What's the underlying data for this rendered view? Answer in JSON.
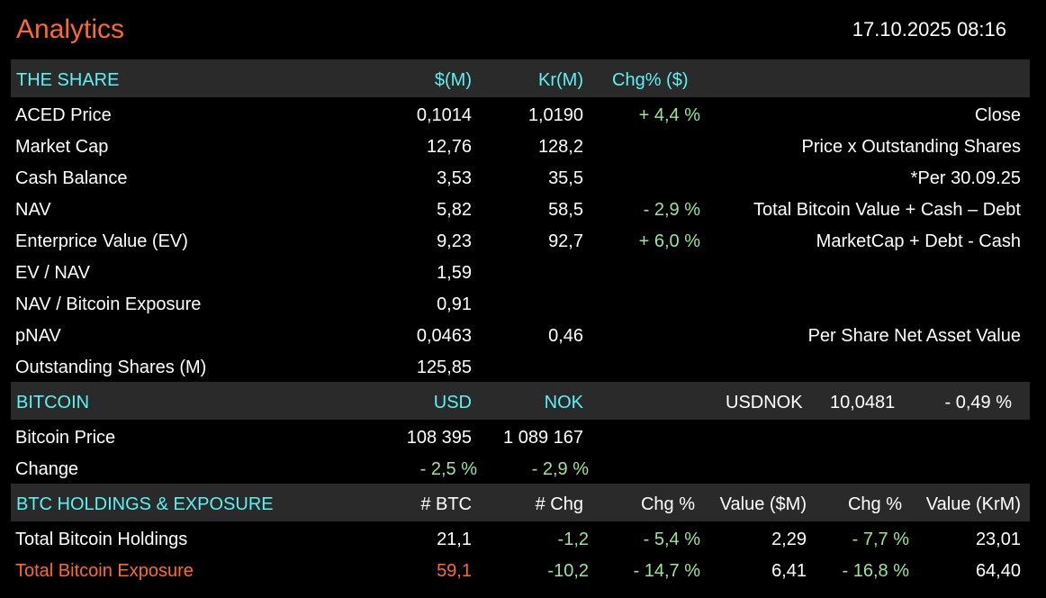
{
  "title": "Analytics",
  "datetime": "17.10.2025 08:16",
  "share": {
    "header": {
      "label": "THE SHARE",
      "usd": "$(M)",
      "nok": "Kr(M)",
      "chg": "Chg% ($)"
    },
    "rows": [
      {
        "label": "ACED Price",
        "usd": "0,1014",
        "nok": "1,0190",
        "chg": "+ 4,4 %",
        "note": "Close"
      },
      {
        "label": "Market Cap",
        "usd": "12,76",
        "nok": "128,2",
        "chg": "",
        "note": "Price x Outstanding Shares"
      },
      {
        "label": "Cash Balance",
        "usd": "3,53",
        "nok": "35,5",
        "chg": "",
        "note": "*Per 30.09.25"
      },
      {
        "label": "NAV",
        "usd": "5,82",
        "nok": "58,5",
        "chg": "- 2,9 %",
        "note": "Total Bitcoin Value + Cash – Debt"
      },
      {
        "label": "Enterprice Value (EV)",
        "usd": "9,23",
        "nok": "92,7",
        "chg": "+ 6,0 %",
        "note": "MarketCap + Debt - Cash"
      },
      {
        "label": "EV / NAV",
        "usd": "1,59",
        "nok": "",
        "chg": "",
        "note": ""
      },
      {
        "label": "NAV / Bitcoin Exposure",
        "usd": "0,91",
        "nok": "",
        "chg": "",
        "note": ""
      },
      {
        "label": "pNAV",
        "usd": "0,0463",
        "nok": "0,46",
        "chg": "",
        "note": "Per Share Net Asset Value"
      },
      {
        "label": "Outstanding Shares (M)",
        "usd": "125,85",
        "nok": "",
        "chg": "",
        "note": ""
      }
    ]
  },
  "bitcoin": {
    "header": {
      "label": "BITCOIN",
      "usd": "USD",
      "nok": "NOK",
      "fx_label": "USDNOK",
      "fx_rate": "10,0481",
      "fx_chg": "- 0,49 %"
    },
    "price": {
      "label": "Bitcoin Price",
      "usd": "108 395",
      "nok": "1 089 167"
    },
    "change": {
      "label": "Change",
      "usd": "- 2,5 %",
      "nok": "- 2,9 %"
    }
  },
  "holdings": {
    "header": {
      "label": "BTC HOLDINGS & EXPOSURE",
      "btc": "# BTC",
      "chg": "# Chg",
      "chg_pct": "Chg %",
      "value_usd": "Value ($M)",
      "chg_pct2": "Chg %",
      "value_nok": "Value (KrM)"
    },
    "rows": [
      {
        "label": "Total Bitcoin Holdings",
        "btc": "21,1",
        "chg": "-1,2",
        "chg_pct": "- 5,4 %",
        "value_usd": "2,29",
        "chg_pct2": "- 7,7 %",
        "value_nok": "23,01"
      },
      {
        "label": "Total Bitcoin Exposure",
        "btc": "59,1",
        "chg": "-10,2",
        "chg_pct": "- 14,7 %",
        "value_usd": "6,41",
        "chg_pct2": "- 16,8 %",
        "value_nok": "64,40"
      }
    ]
  },
  "colors": {
    "accent": "#ff6a2b",
    "header_text": "#5cf2f2",
    "positive_negative": "#9de59d",
    "header_bg": "#2a2a2a"
  }
}
